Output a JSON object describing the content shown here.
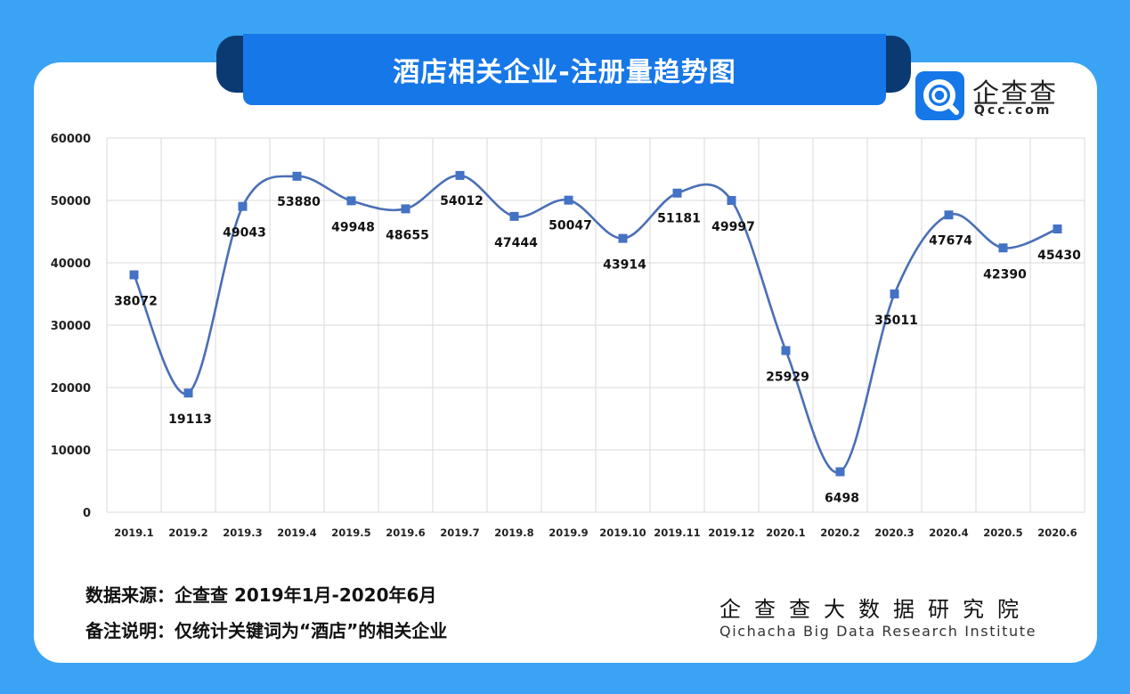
{
  "header": {
    "title": "酒店相关企业-注册量趋势图"
  },
  "logo": {
    "icon": "qcc-magnifier-icon",
    "name_cn": "企查查",
    "name_en": "Qcc.com"
  },
  "colors": {
    "background": "#3aa3f4",
    "title_bar": "#1677e8",
    "line": "#4a6fb5",
    "marker": "#4472c4"
  },
  "chart_data": {
    "type": "line",
    "title": "酒店相关企业-注册量趋势图",
    "xlabel": "",
    "ylabel": "",
    "categories": [
      "2019.1",
      "2019.2",
      "2019.3",
      "2019.4",
      "2019.5",
      "2019.6",
      "2019.7",
      "2019.8",
      "2019.9",
      "2019.10",
      "2019.11",
      "2019.12",
      "2020.1",
      "2020.2",
      "2020.3",
      "2020.4",
      "2020.5",
      "2020.6"
    ],
    "series": [
      {
        "values": [
          38072,
          19113,
          49043,
          53880,
          49948,
          48655,
          54012,
          47444,
          50047,
          43914,
          51181,
          49997,
          25929,
          6498,
          35011,
          47674,
          42390,
          45430
        ],
        "data_labels": [
          "38072",
          "19113",
          "49043",
          "53880",
          "49948",
          "48655",
          "54012",
          "47444",
          "50047",
          "43914",
          "51181",
          "49997",
          "25929",
          "6498",
          "35011",
          "47674",
          "42390",
          "45430"
        ]
      }
    ],
    "ylim": [
      0,
      60000
    ],
    "y_ticks": [
      0,
      10000,
      20000,
      30000,
      40000,
      50000,
      60000
    ],
    "y_tick_labels": [
      "0",
      "10000",
      "20000",
      "30000",
      "40000",
      "50000",
      "60000"
    ],
    "grid": true,
    "smooth": true,
    "legend": "none"
  },
  "footer": {
    "source": "数据来源：企查查  2019年1月-2020年6月",
    "remark": "备注说明：仅统计关键词为“酒店”的相关企业",
    "brand_cn": "企查查大数据研究院",
    "brand_en": "Qichacha Big Data Research Institute"
  }
}
